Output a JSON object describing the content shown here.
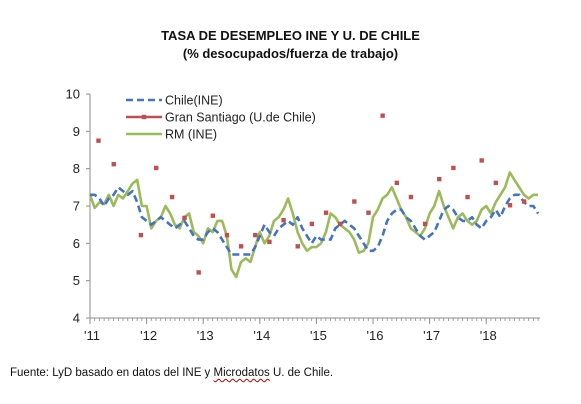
{
  "chart_data": {
    "type": "line",
    "title": "TASA DE DESEMPLEO INE Y U. DE CHILE",
    "subtitle": "(% desocupados/fuerza de trabajo)",
    "ylim": [
      4,
      10
    ],
    "y_ticks": [
      "4",
      "5",
      "6",
      "7",
      "8",
      "9",
      "10"
    ],
    "x_ticks": [
      "'11",
      "'12",
      "'13",
      "'14",
      "'15",
      "'16",
      "'17",
      "'18"
    ],
    "grid": false,
    "legend_position": "top-left",
    "series": [
      {
        "name": "Chile(INE)",
        "style": "dashed",
        "color": "#4472c4",
        "x": [
          2011.0,
          2011.083,
          2011.167,
          2011.25,
          2011.333,
          2011.417,
          2011.5,
          2011.583,
          2011.667,
          2011.75,
          2011.833,
          2011.917,
          2012.0,
          2012.083,
          2012.167,
          2012.25,
          2012.333,
          2012.417,
          2012.5,
          2012.583,
          2012.667,
          2012.75,
          2012.833,
          2012.917,
          2013.0,
          2013.083,
          2013.167,
          2013.25,
          2013.333,
          2013.417,
          2013.5,
          2013.583,
          2013.667,
          2013.75,
          2013.833,
          2013.917,
          2014.0,
          2014.083,
          2014.167,
          2014.25,
          2014.333,
          2014.417,
          2014.5,
          2014.583,
          2014.667,
          2014.75,
          2014.833,
          2014.917,
          2015.0,
          2015.083,
          2015.167,
          2015.25,
          2015.333,
          2015.417,
          2015.5,
          2015.583,
          2015.667,
          2015.75,
          2015.833,
          2015.917,
          2016.0,
          2016.083,
          2016.167,
          2016.25,
          2016.333,
          2016.417,
          2016.5,
          2016.583,
          2016.667,
          2016.75,
          2016.833,
          2016.917,
          2017.0,
          2017.083,
          2017.167,
          2017.25,
          2017.333,
          2017.417,
          2017.5,
          2017.583,
          2017.667,
          2017.75,
          2017.833,
          2017.917,
          2018.0,
          2018.083,
          2018.167,
          2018.25,
          2018.333,
          2018.417,
          2018.5,
          2018.583,
          2018.667,
          2018.75,
          2018.833,
          2018.917
        ],
        "values": [
          7.3,
          7.3,
          7.2,
          7.0,
          7.2,
          7.3,
          7.5,
          7.4,
          7.3,
          7.4,
          7.1,
          6.7,
          6.6,
          6.5,
          6.6,
          6.7,
          6.6,
          6.5,
          6.4,
          6.5,
          6.6,
          6.4,
          6.2,
          6.1,
          6.1,
          6.3,
          6.4,
          6.3,
          6.1,
          5.9,
          5.7,
          5.7,
          5.7,
          5.7,
          5.7,
          5.9,
          6.2,
          6.5,
          6.3,
          6.2,
          6.4,
          6.5,
          6.6,
          6.5,
          6.7,
          6.4,
          6.2,
          6.0,
          6.2,
          6.1,
          6.1,
          6.1,
          6.4,
          6.5,
          6.6,
          6.5,
          6.4,
          6.2,
          6.0,
          5.8,
          5.8,
          5.9,
          6.2,
          6.6,
          6.8,
          6.9,
          6.9,
          6.7,
          6.6,
          6.4,
          6.2,
          6.1,
          6.2,
          6.3,
          6.6,
          6.9,
          7.0,
          6.9,
          6.7,
          6.6,
          6.6,
          6.7,
          6.5,
          6.4,
          6.6,
          6.7,
          6.9,
          6.7,
          7.0,
          7.2,
          7.3,
          7.3,
          7.1,
          7.0,
          7.0,
          6.8
        ]
      },
      {
        "name": "Gran  Santiago (U.de Chile)",
        "style": "markers",
        "color": "#c0504d",
        "x": [
          2011.15,
          2011.42,
          2011.9,
          2012.17,
          2012.45,
          2012.67,
          2012.92,
          2013.17,
          2013.42,
          2013.67,
          2013.92,
          2014.17,
          2014.42,
          2014.67,
          2014.92,
          2015.17,
          2015.42,
          2015.67,
          2015.92,
          2016.17,
          2016.42,
          2016.67,
          2016.92,
          2017.17,
          2017.42,
          2017.67,
          2017.92,
          2018.17,
          2018.42,
          2018.67
        ],
        "values": [
          8.75,
          8.12,
          6.22,
          8.02,
          7.24,
          6.68,
          5.22,
          6.74,
          6.22,
          5.92,
          6.22,
          6.04,
          6.62,
          5.92,
          6.52,
          6.82,
          6.52,
          7.12,
          6.82,
          9.42,
          7.62,
          7.24,
          6.52,
          7.72,
          8.02,
          7.24,
          8.22,
          7.62,
          7.02,
          7.12
        ]
      },
      {
        "name": "RM (INE)",
        "style": "solid",
        "color": "#9bbb59",
        "x": [
          2011.0,
          2011.083,
          2011.167,
          2011.25,
          2011.333,
          2011.417,
          2011.5,
          2011.583,
          2011.667,
          2011.75,
          2011.833,
          2011.917,
          2012.0,
          2012.083,
          2012.167,
          2012.25,
          2012.333,
          2012.417,
          2012.5,
          2012.583,
          2012.667,
          2012.75,
          2012.833,
          2012.917,
          2013.0,
          2013.083,
          2013.167,
          2013.25,
          2013.333,
          2013.417,
          2013.5,
          2013.583,
          2013.667,
          2013.75,
          2013.833,
          2013.917,
          2014.0,
          2014.083,
          2014.167,
          2014.25,
          2014.333,
          2014.417,
          2014.5,
          2014.583,
          2014.667,
          2014.75,
          2014.833,
          2014.917,
          2015.0,
          2015.083,
          2015.167,
          2015.25,
          2015.333,
          2015.417,
          2015.5,
          2015.583,
          2015.667,
          2015.75,
          2015.833,
          2015.917,
          2016.0,
          2016.083,
          2016.167,
          2016.25,
          2016.333,
          2016.417,
          2016.5,
          2016.583,
          2016.667,
          2016.75,
          2016.833,
          2016.917,
          2017.0,
          2017.083,
          2017.167,
          2017.25,
          2017.333,
          2017.417,
          2017.5,
          2017.583,
          2017.667,
          2017.75,
          2017.833,
          2017.917,
          2018.0,
          2018.083,
          2018.167,
          2018.25,
          2018.333,
          2018.417,
          2018.5,
          2018.583,
          2018.667,
          2018.75,
          2018.833,
          2018.917
        ],
        "values": [
          7.3,
          6.95,
          7.1,
          7.05,
          7.3,
          7.0,
          7.3,
          7.2,
          7.4,
          7.6,
          7.7,
          7.0,
          7.0,
          6.4,
          6.6,
          6.7,
          7.0,
          6.8,
          6.5,
          6.4,
          6.7,
          6.8,
          6.3,
          6.2,
          6.0,
          6.4,
          6.3,
          6.6,
          6.6,
          6.2,
          5.3,
          5.1,
          5.5,
          5.6,
          5.5,
          5.9,
          6.3,
          6.0,
          6.2,
          6.6,
          6.7,
          6.9,
          7.2,
          6.8,
          6.3,
          6.0,
          5.8,
          5.9,
          5.9,
          6.0,
          6.3,
          6.8,
          6.7,
          6.5,
          6.4,
          6.3,
          6.1,
          5.75,
          5.8,
          6.0,
          6.7,
          6.9,
          7.2,
          7.3,
          7.5,
          7.2,
          6.9,
          6.7,
          6.4,
          6.3,
          6.2,
          6.4,
          6.8,
          7.0,
          7.4,
          7.0,
          6.7,
          6.4,
          6.7,
          6.8,
          6.6,
          6.5,
          6.6,
          6.9,
          7.0,
          6.8,
          7.1,
          7.3,
          7.5,
          7.9,
          7.7,
          7.5,
          7.3,
          7.2,
          7.3,
          7.3
        ]
      }
    ]
  },
  "footer": {
    "source_prefix": "Fuente: LyD basado en datos del INE y ",
    "source_word": "Microdatos",
    "source_suffix": " U. de Chile."
  }
}
